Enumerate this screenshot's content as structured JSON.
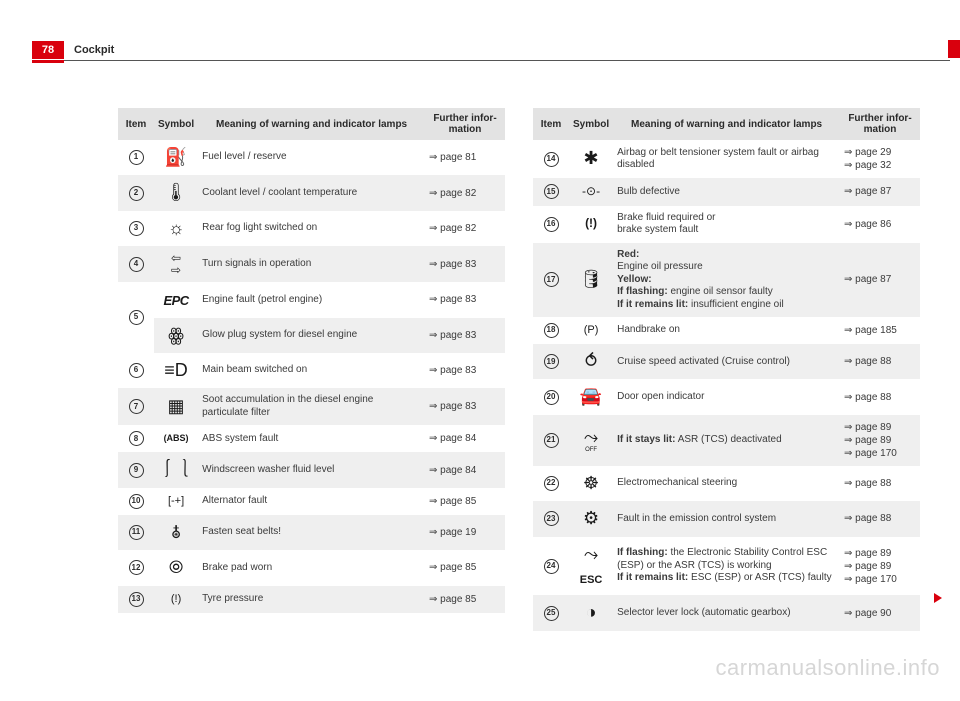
{
  "header": {
    "page_number": "78",
    "section": "Cockpit"
  },
  "columns_header": {
    "item": "Item",
    "symbol": "Symbol",
    "meaning": "Meaning of warning and indicator lamps",
    "info": "Further infor-\nmation"
  },
  "left_rows": [
    {
      "n": "1",
      "sym": "⛽",
      "mean": "Fuel level / reserve",
      "info": "⇒ page 81",
      "stripe": false
    },
    {
      "n": "2",
      "sym": "🌡",
      "mean": "Coolant level / coolant temperature",
      "info": "⇒ page 82",
      "stripe": true
    },
    {
      "n": "3",
      "sym": "☼",
      "mean": "Rear fog light switched on",
      "info": "⇒ page 82",
      "stripe": false
    },
    {
      "n": "4",
      "sym": "⇦\n⇨",
      "mean": "Turn signals in operation",
      "info": "⇒ page 83",
      "stripe": true
    },
    {
      "n": "5",
      "sym": "EPC",
      "sym_class": "epc",
      "mean": "Engine fault (petrol engine)",
      "info": "⇒ page 83",
      "stripe": false,
      "rowspan": 2
    },
    {
      "n": "",
      "sym": "ꙮ",
      "mean": "Glow plug system for diesel engine",
      "info": "⇒ page 83",
      "stripe": true,
      "skip_item": true
    },
    {
      "n": "6",
      "sym": "≡D",
      "mean": "Main beam switched on",
      "info": "⇒ page 83",
      "stripe": false
    },
    {
      "n": "7",
      "sym": "▦",
      "mean": "Soot accumulation in the diesel engine particulate filter",
      "info": "⇒ page 83",
      "stripe": true
    },
    {
      "n": "8",
      "sym": "(ABS)",
      "sym_style": "font-size:9px;font-weight:bold",
      "mean": "ABS system fault",
      "info": "⇒ page 84",
      "stripe": false
    },
    {
      "n": "9",
      "sym": "⎰⎱",
      "mean": "Windscreen washer fluid level",
      "info": "⇒ page 84",
      "stripe": true
    },
    {
      "n": "10",
      "sym": "[-+]",
      "sym_style": "font-size:11px",
      "mean": "Alternator fault",
      "info": "⇒ page 85",
      "stripe": false
    },
    {
      "n": "11",
      "sym": "🜯",
      "mean": "Fasten seat belts!",
      "info": "⇒ page 19",
      "stripe": true
    },
    {
      "n": "12",
      "sym": "⦾",
      "mean": "Brake pad worn",
      "info": "⇒ page 85",
      "stripe": false
    },
    {
      "n": "13",
      "sym": "(!)",
      "sym_style": "font-size:11px",
      "mean": "Tyre pressure",
      "info": "⇒ page 85",
      "stripe": true
    }
  ],
  "right_rows": [
    {
      "n": "14",
      "sym": "✱",
      "mean": "Airbag or belt tensioner system fault or airbag disabled",
      "info": "⇒ page 29\n⇒ page 32",
      "stripe": false
    },
    {
      "n": "15",
      "sym": "-⊙-",
      "sym_style": "font-size:12px",
      "mean": "Bulb defective",
      "info": "⇒ page 87",
      "stripe": true
    },
    {
      "n": "16",
      "sym": "(!)",
      "sym_style": "font-size:12px;font-weight:bold",
      "mean": "Brake fluid required or\nbrake system fault",
      "info": "⇒ page 86",
      "stripe": false
    },
    {
      "n": "17",
      "sym": "🛢",
      "mean_html": "<b>Red:</b><br>Engine oil pressure<br><b>Yellow:</b><br><b>If flashing:</b> engine oil sensor faulty<br><b>If it remains lit:</b> insufficient engine oil",
      "info": "⇒ page 87",
      "stripe": true
    },
    {
      "n": "18",
      "sym": "(P)",
      "sym_style": "font-size:11px",
      "mean": "Handbrake on",
      "info": "⇒ page 185",
      "stripe": false
    },
    {
      "n": "19",
      "sym": "⥀",
      "mean": "Cruise speed activated (Cruise control)",
      "info": "⇒ page 88",
      "stripe": true
    },
    {
      "n": "20",
      "sym": "🚘",
      "mean": "Door open indicator",
      "info": "⇒ page 88",
      "stripe": false
    },
    {
      "n": "21",
      "sym": "⤳",
      "sub": "OFF",
      "mean_html": "<b>If it stays lit:</b> ASR (TCS) deactivated",
      "info": "⇒ page 89\n⇒ page 89\n⇒ page 170",
      "stripe": true
    },
    {
      "n": "22",
      "sym": "☸",
      "mean": "Electromechanical steering",
      "info": "⇒ page 88",
      "stripe": false
    },
    {
      "n": "23",
      "sym": "⚙",
      "mean": "Fault in the emission control system",
      "info": "⇒ page 88",
      "stripe": true
    },
    {
      "n": "24",
      "sym": "⤳",
      "sym2": "ESC",
      "mean_html": "<b>If flashing:</b> the Electronic Stability Control ESC (ESP) or the ASR (TCS) is working<br><b>If it remains lit:</b> ESC (ESP) or ASR (TCS) faulty",
      "info": "⇒ page 89\n⇒ page 89\n⇒ page 170",
      "stripe": false
    },
    {
      "n": "25",
      "sym": "◑",
      "mean": "Selector lever lock (automatic gearbox)",
      "info": "⇒ page 90",
      "stripe": true
    }
  ],
  "watermark": "carmanualsonline.info"
}
